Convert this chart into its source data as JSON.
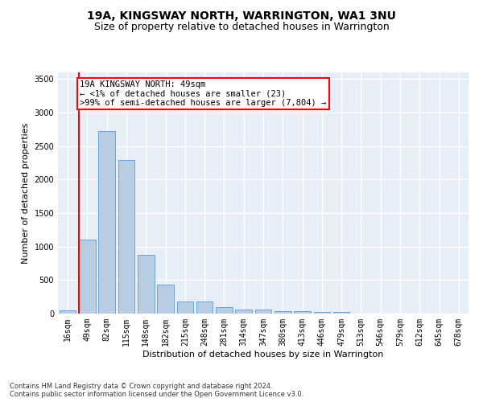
{
  "title": "19A, KINGSWAY NORTH, WARRINGTON, WA1 3NU",
  "subtitle": "Size of property relative to detached houses in Warrington",
  "xlabel": "Distribution of detached houses by size in Warrington",
  "ylabel": "Number of detached properties",
  "categories": [
    "16sqm",
    "49sqm",
    "82sqm",
    "115sqm",
    "148sqm",
    "182sqm",
    "215sqm",
    "248sqm",
    "281sqm",
    "314sqm",
    "347sqm",
    "380sqm",
    "413sqm",
    "446sqm",
    "479sqm",
    "513sqm",
    "546sqm",
    "579sqm",
    "612sqm",
    "645sqm",
    "678sqm"
  ],
  "values": [
    50,
    1110,
    2730,
    2290,
    875,
    430,
    175,
    175,
    100,
    60,
    55,
    40,
    35,
    30,
    25,
    5,
    5,
    2,
    2,
    1,
    1
  ],
  "bar_color": "#b8cce4",
  "bar_edgecolor": "#5b9bd5",
  "highlight_bar_index": 1,
  "highlight_color": "#ff0000",
  "annotation_box_text": "19A KINGSWAY NORTH: 49sqm\n← <1% of detached houses are smaller (23)\n>99% of semi-detached houses are larger (7,804) →",
  "annotation_box_color": "#ff0000",
  "ylim": [
    0,
    3600
  ],
  "yticks": [
    0,
    500,
    1000,
    1500,
    2000,
    2500,
    3000,
    3500
  ],
  "background_color": "#e8eef7",
  "grid_color": "#ffffff",
  "footer_line1": "Contains HM Land Registry data © Crown copyright and database right 2024.",
  "footer_line2": "Contains public sector information licensed under the Open Government Licence v3.0.",
  "title_fontsize": 10,
  "subtitle_fontsize": 9,
  "axis_label_fontsize": 8,
  "tick_fontsize": 7,
  "annotation_fontsize": 7.5,
  "footer_fontsize": 6
}
